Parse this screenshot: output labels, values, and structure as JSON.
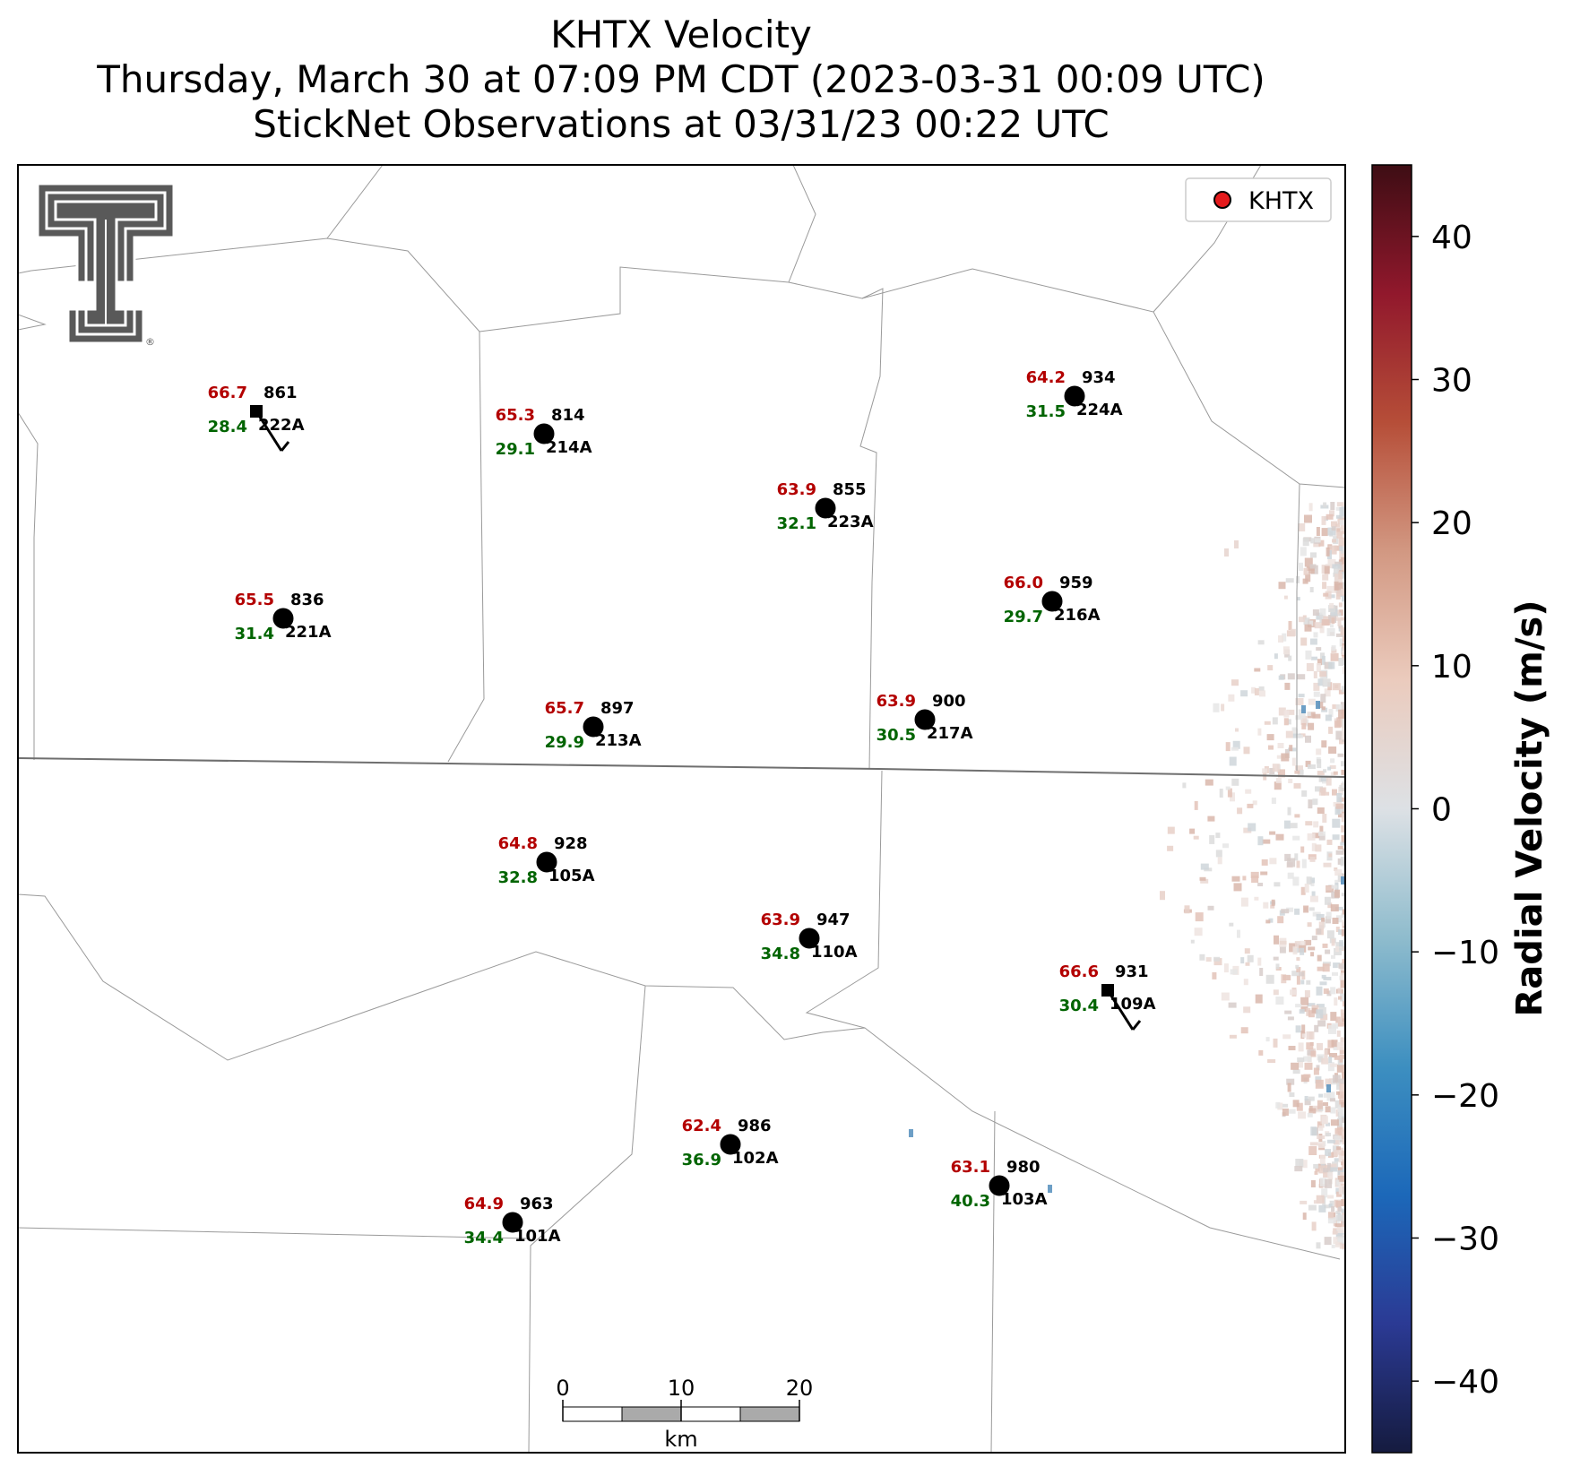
{
  "title": {
    "line1": "KHTX Velocity",
    "line2": "Thursday, March 30 at 07:09 PM CDT (2023-03-31 00:09 UTC)",
    "line3": "StickNet Observations at 03/31/23 00:22 UTC"
  },
  "legend": {
    "label": "KHTX",
    "marker_color": "#e41a1c",
    "placement": "top-right"
  },
  "logo": {
    "name": "Texas Tech Double T logo",
    "registered_mark": "®"
  },
  "colorbar": {
    "label": "Radial Velocity (m/s)",
    "range": [
      -45,
      45
    ],
    "ticks": [
      "40",
      "30",
      "20",
      "10",
      "0",
      "−10",
      "−20",
      "−30",
      "−40"
    ],
    "tick_values": [
      40,
      30,
      20,
      10,
      0,
      -10,
      -20,
      -30,
      -40
    ],
    "colors": [
      "#151b3f",
      "#2b3a94",
      "#1c68b9",
      "#3d8fc0",
      "#8fbccd",
      "#dde1e5",
      "#ebcbbd",
      "#d29882",
      "#b64e38",
      "#91182c",
      "#3e0d14"
    ]
  },
  "scalebar": {
    "ticks": [
      "0",
      "10",
      "20"
    ],
    "unit": "km"
  },
  "stations": [
    {
      "id": "222A",
      "pressure": "861",
      "temp": "66.7",
      "dew": "28.4",
      "marker": "square",
      "barb": true
    },
    {
      "id": "214A",
      "pressure": "814",
      "temp": "65.3",
      "dew": "29.1",
      "marker": "circle",
      "barb": false
    },
    {
      "id": "224A",
      "pressure": "934",
      "temp": "64.2",
      "dew": "31.5",
      "marker": "circle",
      "barb": false
    },
    {
      "id": "223A",
      "pressure": "855",
      "temp": "63.9",
      "dew": "32.1",
      "marker": "circle",
      "barb": false
    },
    {
      "id": "221A",
      "pressure": "836",
      "temp": "65.5",
      "dew": "31.4",
      "marker": "circle",
      "barb": false
    },
    {
      "id": "216A",
      "pressure": "959",
      "temp": "66.0",
      "dew": "29.7",
      "marker": "circle",
      "barb": false
    },
    {
      "id": "213A",
      "pressure": "897",
      "temp": "65.7",
      "dew": "29.9",
      "marker": "circle",
      "barb": false
    },
    {
      "id": "217A",
      "pressure": "900",
      "temp": "63.9",
      "dew": "30.5",
      "marker": "circle",
      "barb": false
    },
    {
      "id": "105A",
      "pressure": "928",
      "temp": "64.8",
      "dew": "32.8",
      "marker": "circle",
      "barb": false
    },
    {
      "id": "110A",
      "pressure": "947",
      "temp": "63.9",
      "dew": "34.8",
      "marker": "circle",
      "barb": false
    },
    {
      "id": "109A",
      "pressure": "931",
      "temp": "66.6",
      "dew": "30.4",
      "marker": "square",
      "barb": true
    },
    {
      "id": "102A",
      "pressure": "986",
      "temp": "62.4",
      "dew": "36.9",
      "marker": "circle",
      "barb": false
    },
    {
      "id": "103A",
      "pressure": "980",
      "temp": "63.1",
      "dew": "40.3",
      "marker": "circle",
      "barb": false
    },
    {
      "id": "101A",
      "pressure": "963",
      "temp": "64.9",
      "dew": "34.4",
      "marker": "circle",
      "barb": false
    }
  ],
  "colors": {
    "temp": "#b30000",
    "dew": "#006400",
    "county_line": "#9a9a9a",
    "state_line": "#6f6f6f"
  }
}
